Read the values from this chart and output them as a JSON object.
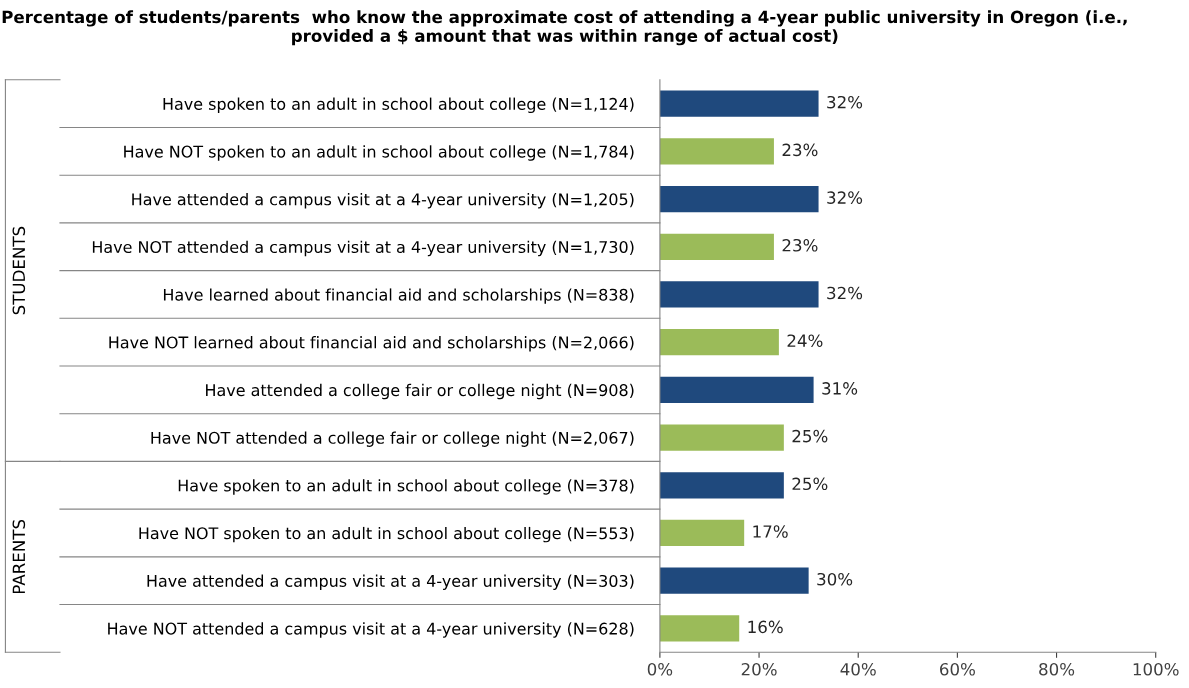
{
  "chart_data": {
    "type": "bar",
    "orientation": "horizontal",
    "title": "Percentage of students/parents  who know the approximate cost of attending a 4-year public university in Oregon (i.e., provided a $ amount that was within range of actual cost)",
    "categories": [
      "Have spoken to an adult in school about college (N=1,124)",
      "Have NOT spoken to an adult in school about college (N=1,784)",
      "Have attended a campus visit at a 4-year university (N=1,205)",
      "Have NOT attended a campus visit at a 4-year university (N=1,730)",
      "Have learned about financial aid and scholarships (N=838)",
      "Have NOT learned about financial aid and scholarships (N=2,066)",
      "Have attended a college fair or college night (N=908)",
      "Have NOT attended a college fair or college night (N=2,067)",
      "Have spoken to an adult in school about college (N=378)",
      "Have NOT spoken to an adult in school about college (N=553)",
      "Have attended a campus visit at a 4-year university (N=303)",
      "Have NOT attended a campus visit at a 4-year university (N=628)"
    ],
    "values": [
      32,
      23,
      32,
      23,
      32,
      24,
      31,
      25,
      25,
      17,
      30,
      16
    ],
    "value_labels": [
      "32%",
      "23%",
      "32%",
      "23%",
      "32%",
      "24%",
      "31%",
      "25%",
      "25%",
      "17%",
      "30%",
      "16%"
    ],
    "colors": [
      "#1f497d",
      "#9bbb59",
      "#1f497d",
      "#9bbb59",
      "#1f497d",
      "#9bbb59",
      "#1f497d",
      "#9bbb59",
      "#1f497d",
      "#9bbb59",
      "#1f497d",
      "#9bbb59"
    ],
    "xlim": [
      0,
      100
    ],
    "xticks": [
      {
        "value": 0,
        "label": "0%"
      },
      {
        "value": 20,
        "label": "20%"
      },
      {
        "value": 40,
        "label": "40%"
      },
      {
        "value": 60,
        "label": "60%"
      },
      {
        "value": 80,
        "label": "80%"
      },
      {
        "value": 100,
        "label": "100%"
      }
    ],
    "annotations": [
      "STUDENTS",
      "PARENTS"
    ],
    "grid": false
  }
}
